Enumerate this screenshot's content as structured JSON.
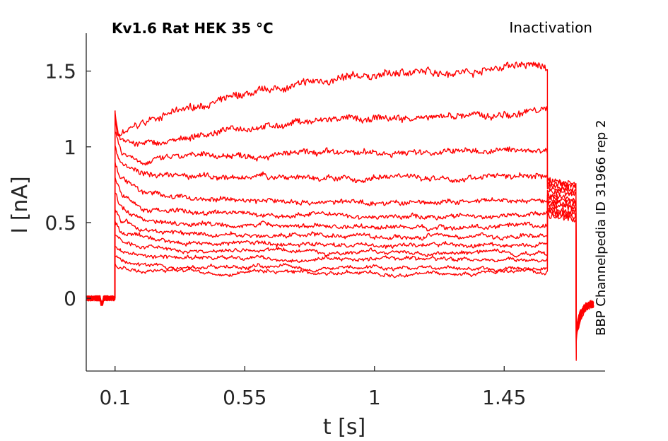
{
  "header": {
    "title": "Kv1.6  Rat  HEK  35 °C",
    "protocol": "Inactivation",
    "side_label": "BBP Channelpedia ID 31966 rep 2"
  },
  "chart_data": {
    "type": "line",
    "xlabel": "t [s]",
    "ylabel": "I [nA]",
    "xlim": [
      0.0,
      1.8
    ],
    "ylim": [
      -0.48,
      1.75
    ],
    "x_ticks": [
      0.1,
      0.55,
      1,
      1.45
    ],
    "x_tick_labels": [
      "0.1",
      "0.55",
      "1",
      "1.45"
    ],
    "y_ticks": [
      0,
      0.5,
      1,
      1.5
    ],
    "y_tick_labels": [
      "0",
      "0.5",
      "1",
      "1.5"
    ],
    "grid": false,
    "colors": {
      "trace": "#ff0000",
      "axis": "#262626"
    },
    "phases": {
      "baseline_end": 0.1,
      "step_end": 1.6,
      "tail_end": 1.7,
      "end": 1.76
    },
    "peak_current": 1.24,
    "tail_dip_min": -0.41,
    "series": [
      {
        "points": [
          [
            0.1,
            1.24
          ],
          [
            0.11,
            1.08
          ],
          [
            0.25,
            1.2
          ],
          [
            0.5,
            1.32
          ],
          [
            0.8,
            1.43
          ],
          [
            1.1,
            1.49
          ],
          [
            1.35,
            1.5
          ],
          [
            1.48,
            1.54
          ],
          [
            1.58,
            1.53
          ]
        ],
        "tail": 0.78
      },
      {
        "points": [
          [
            0.1,
            1.2
          ],
          [
            0.11,
            1.07
          ],
          [
            0.16,
            1.02
          ],
          [
            0.25,
            1.02
          ],
          [
            0.5,
            1.11
          ],
          [
            0.8,
            1.17
          ],
          [
            1.2,
            1.19
          ],
          [
            1.58,
            1.24
          ]
        ],
        "tail": 0.77
      },
      {
        "points": [
          [
            0.1,
            1.1
          ],
          [
            0.12,
            0.97
          ],
          [
            0.2,
            0.9
          ],
          [
            0.3,
            0.93
          ],
          [
            0.6,
            0.95
          ],
          [
            1.0,
            0.96
          ],
          [
            1.58,
            0.98
          ]
        ],
        "tail": 0.75
      },
      {
        "points": [
          [
            0.1,
            1.0
          ],
          [
            0.12,
            0.9
          ],
          [
            0.2,
            0.82
          ],
          [
            0.35,
            0.8
          ],
          [
            0.7,
            0.8
          ],
          [
            1.1,
            0.79
          ],
          [
            1.58,
            0.8
          ]
        ],
        "tail": 0.73
      },
      {
        "points": [
          [
            0.1,
            0.9
          ],
          [
            0.12,
            0.8
          ],
          [
            0.2,
            0.7
          ],
          [
            0.35,
            0.66
          ],
          [
            0.7,
            0.64
          ],
          [
            1.1,
            0.63
          ],
          [
            1.58,
            0.64
          ]
        ],
        "tail": 0.71
      },
      {
        "points": [
          [
            0.1,
            0.8
          ],
          [
            0.12,
            0.7
          ],
          [
            0.2,
            0.6
          ],
          [
            0.35,
            0.57
          ],
          [
            0.7,
            0.55
          ],
          [
            1.1,
            0.54
          ],
          [
            1.58,
            0.55
          ]
        ],
        "tail": 0.68
      },
      {
        "points": [
          [
            0.1,
            0.7
          ],
          [
            0.12,
            0.6
          ],
          [
            0.2,
            0.52
          ],
          [
            0.35,
            0.5
          ],
          [
            0.7,
            0.48
          ],
          [
            1.1,
            0.47
          ],
          [
            1.58,
            0.47
          ]
        ],
        "tail": 0.66
      },
      {
        "points": [
          [
            0.1,
            0.6
          ],
          [
            0.12,
            0.52
          ],
          [
            0.2,
            0.45
          ],
          [
            0.35,
            0.43
          ],
          [
            0.7,
            0.42
          ],
          [
            1.1,
            0.41
          ],
          [
            1.58,
            0.41
          ]
        ],
        "tail": 0.64
      },
      {
        "points": [
          [
            0.1,
            0.5
          ],
          [
            0.12,
            0.44
          ],
          [
            0.2,
            0.39
          ],
          [
            0.35,
            0.37
          ],
          [
            0.7,
            0.36
          ],
          [
            1.1,
            0.35
          ],
          [
            1.58,
            0.35
          ]
        ],
        "tail": 0.62
      },
      {
        "points": [
          [
            0.1,
            0.42
          ],
          [
            0.12,
            0.38
          ],
          [
            0.2,
            0.34
          ],
          [
            0.35,
            0.32
          ],
          [
            0.7,
            0.31
          ],
          [
            1.1,
            0.3
          ],
          [
            1.58,
            0.3
          ]
        ],
        "tail": 0.6
      },
      {
        "points": [
          [
            0.1,
            0.35
          ],
          [
            0.12,
            0.32
          ],
          [
            0.2,
            0.28
          ],
          [
            0.35,
            0.27
          ],
          [
            0.7,
            0.26
          ],
          [
            1.1,
            0.26
          ],
          [
            1.58,
            0.25
          ]
        ],
        "tail": 0.58
      },
      {
        "points": [
          [
            0.1,
            0.28
          ],
          [
            0.12,
            0.25
          ],
          [
            0.2,
            0.22
          ],
          [
            0.35,
            0.21
          ],
          [
            0.7,
            0.21
          ],
          [
            1.1,
            0.2
          ],
          [
            1.58,
            0.2
          ]
        ],
        "tail": 0.57
      },
      {
        "points": [
          [
            0.1,
            0.22
          ],
          [
            0.12,
            0.2
          ],
          [
            0.2,
            0.18
          ],
          [
            0.35,
            0.17
          ],
          [
            0.7,
            0.17
          ],
          [
            1.1,
            0.17
          ],
          [
            1.58,
            0.17
          ]
        ],
        "tail": 0.55
      }
    ]
  }
}
